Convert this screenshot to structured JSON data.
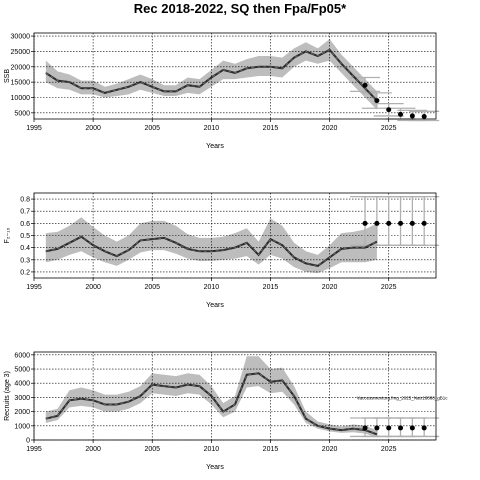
{
  "title": "Rec 2018-2022, SQ then Fpa/Fp05*",
  "chart_data": [
    {
      "type": "line",
      "ylabel": "SSB",
      "xlabel": "Years",
      "xlim": [
        1995,
        2029
      ],
      "ylim": [
        3000,
        31000
      ],
      "x_ticks": [
        1995,
        2000,
        2005,
        2010,
        2015,
        2020,
        2025
      ],
      "y_ticks": [
        5000,
        10000,
        15000,
        20000,
        25000,
        30000
      ],
      "y_tick_labels": [
        "5000",
        "10000",
        "15000",
        "20000",
        "25000",
        "30000"
      ],
      "grid": true,
      "band_color": "#bdbdbd",
      "line_color": "#2b2b2b",
      "years": [
        1996,
        1997,
        1998,
        1999,
        2000,
        2001,
        2002,
        2003,
        2004,
        2005,
        2006,
        2007,
        2008,
        2009,
        2010,
        2011,
        2012,
        2013,
        2014,
        2015,
        2016,
        2017,
        2018,
        2019,
        2020,
        2021,
        2022,
        2023,
        2024
      ],
      "median": [
        18000,
        15500,
        15000,
        13000,
        13000,
        11500,
        12500,
        13500,
        15000,
        13500,
        12000,
        12000,
        14000,
        13500,
        16500,
        19000,
        18000,
        19500,
        20000,
        20000,
        19500,
        23000,
        25000,
        23500,
        25500,
        21000,
        17000,
        13000,
        9000
      ],
      "lower": [
        15000,
        13000,
        12500,
        11000,
        11000,
        10000,
        10500,
        11000,
        12500,
        11500,
        10500,
        10500,
        11500,
        11000,
        13500,
        16000,
        16000,
        16500,
        17000,
        17000,
        16500,
        20000,
        22000,
        21000,
        22000,
        18000,
        14000,
        10000,
        6000
      ],
      "upper": [
        22000,
        18500,
        17500,
        15500,
        15500,
        13500,
        14500,
        16000,
        17500,
        16000,
        14000,
        14000,
        16500,
        16000,
        19000,
        22000,
        21000,
        22500,
        23500,
        23500,
        23000,
        26000,
        28000,
        26000,
        29000,
        24000,
        20000,
        16000,
        12000
      ],
      "proj_years": [
        2023,
        2024,
        2025,
        2026,
        2027,
        2028
      ],
      "proj_median": [
        14000,
        9000,
        6000,
        4500,
        4000,
        3800
      ],
      "proj_lower": [
        12000,
        6500,
        4000,
        3000,
        2500,
        2500
      ],
      "proj_upper": [
        16500,
        11500,
        8000,
        6500,
        5800,
        5500
      ]
    },
    {
      "type": "line",
      "ylabel": "F₂₋₁₀",
      "xlabel": "Years",
      "xlim": [
        1995,
        2029
      ],
      "ylim": [
        0.15,
        0.85
      ],
      "x_ticks": [
        1995,
        2000,
        2005,
        2010,
        2015,
        2020,
        2025
      ],
      "y_ticks": [
        0.2,
        0.3,
        0.4,
        0.5,
        0.6,
        0.7,
        0.8
      ],
      "y_tick_labels": [
        "0.2",
        "0.3",
        "0.4",
        "0.5",
        "0.6",
        "0.7",
        "0.8"
      ],
      "grid": true,
      "band_color": "#bdbdbd",
      "line_color": "#2b2b2b",
      "years": [
        1996,
        1997,
        1998,
        1999,
        2000,
        2001,
        2002,
        2003,
        2004,
        2005,
        2006,
        2007,
        2008,
        2009,
        2010,
        2011,
        2012,
        2013,
        2014,
        2015,
        2016,
        2017,
        2018,
        2019,
        2020,
        2021,
        2022,
        2023,
        2024
      ],
      "median": [
        0.37,
        0.39,
        0.44,
        0.49,
        0.42,
        0.37,
        0.33,
        0.38,
        0.46,
        0.47,
        0.48,
        0.44,
        0.39,
        0.37,
        0.37,
        0.38,
        0.4,
        0.44,
        0.34,
        0.47,
        0.42,
        0.32,
        0.27,
        0.25,
        0.32,
        0.39,
        0.4,
        0.4,
        0.45
      ],
      "lower": [
        0.28,
        0.3,
        0.34,
        0.37,
        0.32,
        0.28,
        0.25,
        0.3,
        0.36,
        0.38,
        0.38,
        0.35,
        0.31,
        0.29,
        0.29,
        0.3,
        0.31,
        0.33,
        0.26,
        0.34,
        0.31,
        0.24,
        0.2,
        0.19,
        0.23,
        0.28,
        0.28,
        0.28,
        0.3
      ],
      "upper": [
        0.52,
        0.53,
        0.58,
        0.65,
        0.57,
        0.5,
        0.45,
        0.5,
        0.6,
        0.62,
        0.62,
        0.58,
        0.51,
        0.48,
        0.48,
        0.49,
        0.52,
        0.56,
        0.45,
        0.64,
        0.58,
        0.44,
        0.37,
        0.34,
        0.42,
        0.52,
        0.53,
        0.55,
        0.6
      ],
      "proj_years": [
        2023,
        2024,
        2025,
        2026,
        2027,
        2028
      ],
      "proj_median": [
        0.6,
        0.6,
        0.6,
        0.6,
        0.6,
        0.6
      ],
      "proj_lower": [
        0.42,
        0.42,
        0.42,
        0.42,
        0.42,
        0.42
      ],
      "proj_upper": [
        0.82,
        0.82,
        0.82,
        0.82,
        0.82,
        0.82
      ]
    },
    {
      "type": "line",
      "ylabel": "Recruits (age 3)",
      "xlabel": "Years",
      "xlim": [
        1995,
        2029
      ],
      "ylim": [
        0,
        6200
      ],
      "x_ticks": [
        1995,
        2000,
        2005,
        2010,
        2015,
        2020,
        2025
      ],
      "y_ticks": [
        0,
        1000,
        2000,
        3000,
        4000,
        5000,
        6000
      ],
      "y_tick_labels": [
        "0",
        "1000",
        "2000",
        "3000",
        "4000",
        "5000",
        "6000"
      ],
      "grid": true,
      "band_color": "#bdbdbd",
      "line_color": "#2b2b2b",
      "annotation": "Vaccessmentorg.fmg_2025_Natr18888_gB1c",
      "annotation_x": 2022.3,
      "annotation_y": 2850,
      "years": [
        1996,
        1997,
        1998,
        1999,
        2000,
        2001,
        2002,
        2003,
        2004,
        2005,
        2006,
        2007,
        2008,
        2009,
        2010,
        2011,
        2012,
        2013,
        2014,
        2015,
        2016,
        2017,
        2018,
        2019,
        2020,
        2021,
        2022,
        2023,
        2024
      ],
      "median": [
        1500,
        1700,
        2800,
        2900,
        2800,
        2500,
        2500,
        2700,
        3100,
        3900,
        3800,
        3700,
        3900,
        3800,
        3100,
        2000,
        2500,
        4600,
        4700,
        4100,
        4200,
        3100,
        1500,
        1000,
        800,
        700,
        800,
        700,
        400
      ],
      "lower": [
        1200,
        1400,
        2300,
        2400,
        2300,
        2000,
        2000,
        2200,
        2600,
        3300,
        3200,
        3100,
        3300,
        3200,
        2500,
        1600,
        2000,
        3700,
        3800,
        3300,
        3400,
        2500,
        1200,
        800,
        600,
        500,
        550,
        450,
        200
      ],
      "upper": [
        2000,
        2200,
        3500,
        3700,
        3500,
        3200,
        3200,
        3400,
        3800,
        4700,
        4600,
        4500,
        4700,
        4600,
        3800,
        2600,
        3100,
        5900,
        5900,
        5000,
        5100,
        3800,
        2000,
        1300,
        1100,
        950,
        1100,
        1000,
        700
      ],
      "proj_years": [
        2023,
        2024,
        2025,
        2026,
        2027,
        2028
      ],
      "proj_median": [
        850,
        850,
        850,
        850,
        850,
        850
      ],
      "proj_lower": [
        250,
        250,
        250,
        250,
        250,
        250
      ],
      "proj_upper": [
        1550,
        1550,
        1550,
        1550,
        1550,
        1550
      ]
    }
  ]
}
